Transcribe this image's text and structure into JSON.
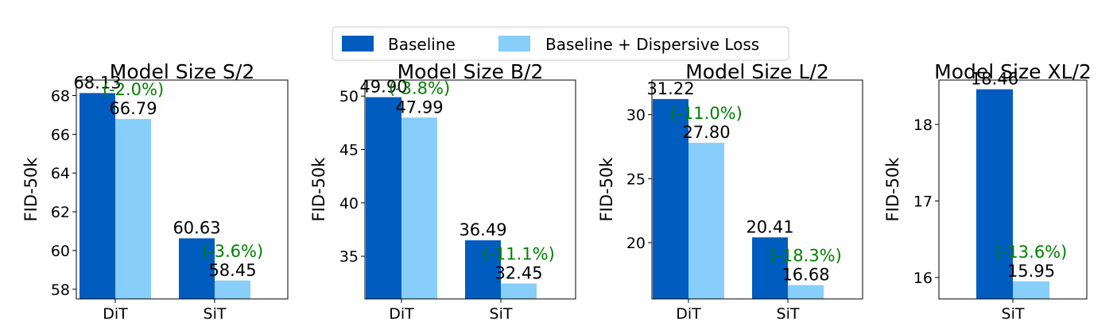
{
  "legend": {
    "items": [
      {
        "label": "Baseline",
        "color": "#005cbf"
      },
      {
        "label": "Baseline + Dispersive Loss",
        "color": "#87cefa"
      }
    ]
  },
  "colors": {
    "baseline": "#005cbf",
    "dispersive": "#87cefa",
    "annotation": "#008000",
    "axis": "#000000"
  },
  "chart_data": [
    {
      "type": "bar",
      "title": "Model Size S/2",
      "ylabel": "FID-50k",
      "categories": [
        "DiT",
        "SiT"
      ],
      "ylim": [
        57.5,
        68.8
      ],
      "yticks": [
        58,
        60,
        62,
        64,
        66,
        68
      ],
      "series": [
        {
          "name": "Baseline",
          "values": [
            68.13,
            60.63
          ]
        },
        {
          "name": "Baseline + Dispersive Loss",
          "values": [
            66.79,
            58.45
          ]
        }
      ],
      "value_labels": {
        "Baseline": [
          "68.13",
          "60.63"
        ],
        "Baseline + Dispersive Loss": [
          "66.79",
          "58.45"
        ]
      },
      "annotations": [
        "(-2.0%)",
        "(-3.6%)"
      ]
    },
    {
      "type": "bar",
      "title": "Model Size B/2",
      "ylabel": "FID-50k",
      "categories": [
        "DiT",
        "SiT"
      ],
      "ylim": [
        31.0,
        51.5
      ],
      "yticks": [
        35,
        40,
        45,
        50
      ],
      "series": [
        {
          "name": "Baseline",
          "values": [
            49.9,
            36.49
          ]
        },
        {
          "name": "Baseline + Dispersive Loss",
          "values": [
            47.99,
            32.45
          ]
        }
      ],
      "value_labels": {
        "Baseline": [
          "49.90",
          "36.49"
        ],
        "Baseline + Dispersive Loss": [
          "47.99",
          "32.45"
        ]
      },
      "annotations": [
        "(-3.8%)",
        "(-11.1%)"
      ]
    },
    {
      "type": "bar",
      "title": "Model Size L/2",
      "ylabel": "FID-50k",
      "categories": [
        "DiT",
        "SiT"
      ],
      "ylim": [
        15.6,
        32.7
      ],
      "yticks": [
        20,
        25,
        30
      ],
      "series": [
        {
          "name": "Baseline",
          "values": [
            31.22,
            20.41
          ]
        },
        {
          "name": "Baseline + Dispersive Loss",
          "values": [
            27.8,
            16.68
          ]
        }
      ],
      "value_labels": {
        "Baseline": [
          "31.22",
          "20.41"
        ],
        "Baseline + Dispersive Loss": [
          "27.80",
          "16.68"
        ]
      },
      "annotations": [
        "(-11.0%)",
        "(-18.3%)"
      ]
    },
    {
      "type": "bar",
      "title": "Model Size XL/2",
      "ylabel": "FID-50k",
      "categories": [
        "SiT"
      ],
      "ylim": [
        15.72,
        18.58
      ],
      "yticks": [
        16,
        17,
        18
      ],
      "series": [
        {
          "name": "Baseline",
          "values": [
            18.46
          ]
        },
        {
          "name": "Baseline + Dispersive Loss",
          "values": [
            15.95
          ]
        }
      ],
      "value_labels": {
        "Baseline": [
          "18.46"
        ],
        "Baseline + Dispersive Loss": [
          "15.95"
        ]
      },
      "annotations": [
        "(-13.6%)"
      ]
    }
  ]
}
